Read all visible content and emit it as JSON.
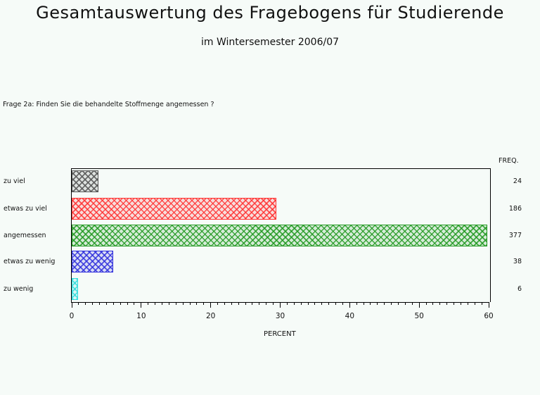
{
  "header": {
    "title": "Gesamtauswertung des Fragebogens für Studierende",
    "subtitle": "im Wintersemester 2006/07"
  },
  "question": "Frage 2a: Finden Sie die behandelte Stoffmenge angemessen ?",
  "chart_data": {
    "type": "bar",
    "orientation": "horizontal",
    "title": "Frage 2a: Finden Sie die behandelte Stoffmenge angemessen ?",
    "categories": [
      "zu viel",
      "etwas zu viel",
      "angemessen",
      "etwas zu wenig",
      "zu wenig"
    ],
    "values": [
      3.8,
      29.48,
      59.75,
      6.02,
      0.95
    ],
    "frequencies": [
      24,
      186,
      377,
      38,
      6
    ],
    "freq_label": "FREQ.",
    "colors": [
      "#555555",
      "#ff3333",
      "#229922",
      "#3333dd",
      "#33dddd"
    ],
    "fill_pattern": "crosshatch",
    "xlabel": "PERCENT",
    "ylabel": "",
    "xlim": [
      0,
      60
    ],
    "xticks": [
      0,
      10,
      20,
      30,
      40,
      50,
      60
    ],
    "grid": false,
    "legend": "none"
  }
}
